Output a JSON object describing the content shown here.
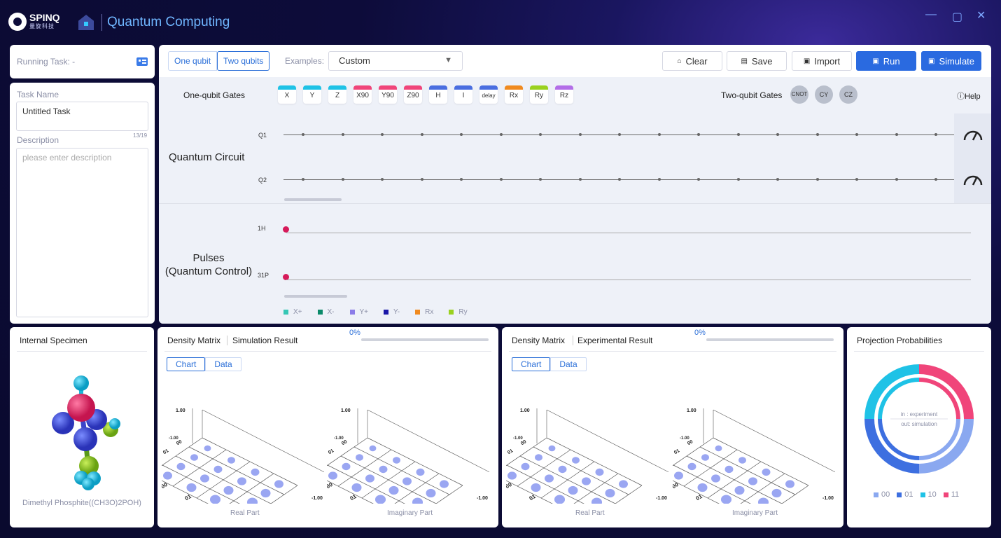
{
  "titlebar": {
    "logo_text": "SPINQ",
    "logo_sub": "量旋科技",
    "app_title": "Quantum Computing",
    "window_controls": [
      "minimize-icon",
      "maximize-icon",
      "close-icon"
    ]
  },
  "task": {
    "running_label": "Running Task: -",
    "name_label": "Task Name",
    "name_value": "Untitled Task",
    "char_count": "13/19",
    "desc_label": "Description",
    "desc_placeholder": "please enter description"
  },
  "toolbar": {
    "qubit_tabs": [
      "One qubit",
      "Two qubits"
    ],
    "active_qubit_tab": "Two qubits",
    "examples_label": "Examples:",
    "examples_value": "Custom",
    "buttons": {
      "clear": "Clear",
      "save": "Save",
      "import": "Import",
      "run": "Run",
      "simulate": "Simulate"
    },
    "accent": "#2a6ae0"
  },
  "gates": {
    "one_qubit_label": "One-qubit Gates",
    "one_qubit": [
      {
        "label": "X",
        "color": "#1fc2e6"
      },
      {
        "label": "Y",
        "color": "#1fc2e6"
      },
      {
        "label": "Z",
        "color": "#1fc2e6"
      },
      {
        "label": "X90",
        "color": "#f0457a"
      },
      {
        "label": "Y90",
        "color": "#f0457a"
      },
      {
        "label": "Z90",
        "color": "#f0457a"
      },
      {
        "label": "H",
        "color": "#4a6ee0"
      },
      {
        "label": "I",
        "color": "#4a6ee0"
      },
      {
        "label": "delay",
        "color": "#4a6ee0"
      },
      {
        "label": "Rx",
        "color": "#f08a1f"
      },
      {
        "label": "Ry",
        "color": "#9ad11f"
      },
      {
        "label": "Rz",
        "color": "#b36ee8"
      }
    ],
    "two_qubit_label": "Two-qubit Gates",
    "two_qubit": [
      "CNOT",
      "CY",
      "CZ"
    ],
    "help": "Help"
  },
  "circuit": {
    "title": "Quantum Circuit",
    "qubits": [
      "Q1",
      "Q2"
    ]
  },
  "pulses": {
    "title_line1": "Pulses",
    "title_line2": "(Quantum Control)",
    "channels": [
      "1H",
      "31P"
    ],
    "legend": [
      {
        "label": "X+",
        "color": "#36c7b5"
      },
      {
        "label": "X-",
        "color": "#0b8a6a"
      },
      {
        "label": "Y+",
        "color": "#8b7ce8"
      },
      {
        "label": "Y-",
        "color": "#1a17a8"
      },
      {
        "label": "Rx",
        "color": "#f08a1f"
      },
      {
        "label": "Ry",
        "color": "#9ad11f"
      }
    ]
  },
  "specimen": {
    "title": "Internal Specimen",
    "caption": "Dimethyl Phosphite((CH3O)2POH)"
  },
  "density_sim": {
    "title": "Density Matrix",
    "subtitle": "Simulation Result",
    "progress": "0%",
    "tabs": [
      "Chart",
      "Data"
    ],
    "real_label": "Real Part",
    "imag_label": "Imaginary Part",
    "axis_max": "1.00",
    "axis_min": "-1.00",
    "basis": [
      "00",
      "01",
      "10",
      "11"
    ]
  },
  "density_exp": {
    "title": "Density Matrix",
    "subtitle": "Experimental Result",
    "progress": "0%",
    "tabs": [
      "Chart",
      "Data"
    ],
    "real_label": "Real Part",
    "imag_label": "Imaginary Part",
    "axis_max": "1.00",
    "axis_min": "-1.00",
    "basis": [
      "00",
      "01",
      "10",
      "11"
    ]
  },
  "projection": {
    "title": "Projection Probabilities",
    "inner_label_1": "in : experiment",
    "inner_label_2": "out: simulation",
    "legend": [
      {
        "label": "00",
        "color": "#8aa8f0"
      },
      {
        "label": "01",
        "color": "#3d6fe0"
      },
      {
        "label": "10",
        "color": "#1fc2e6"
      },
      {
        "label": "11",
        "color": "#f0457a"
      }
    ]
  }
}
